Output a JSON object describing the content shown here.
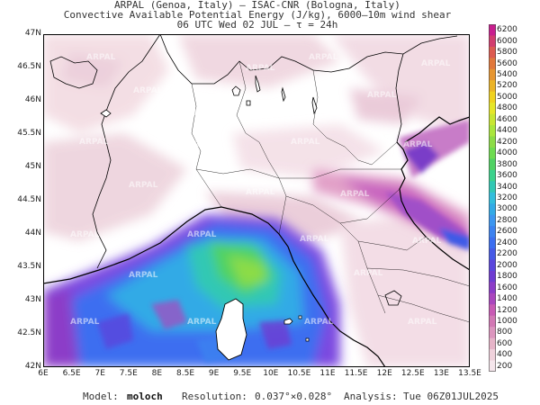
{
  "header": {
    "line1": "ARPAL (Genoa, Italy)  –  ISAC-CNR (Bologna, Italy)",
    "line2": "Convective Available Potential Energy (J/kg), 6000–10m wind shear",
    "line3": "06 UTC Wed 02 JUL  –  τ = 24h"
  },
  "axes": {
    "lat_labels": [
      "47N",
      "46.5N",
      "46N",
      "45.5N",
      "45N",
      "44.5N",
      "44N",
      "43.5N",
      "43N",
      "42.5N",
      "42N"
    ],
    "lon_labels": [
      "6E",
      "6.5E",
      "7E",
      "7.5E",
      "8E",
      "8.5E",
      "9E",
      "9.5E",
      "10E",
      "10.5E",
      "11E",
      "11.5E",
      "12E",
      "12.5E",
      "13E",
      "13.5E"
    ],
    "lat_range": [
      42,
      47
    ],
    "lon_range": [
      6,
      13.5
    ]
  },
  "colorbar": {
    "levels": [
      "6200",
      "6000",
      "5800",
      "5600",
      "5400",
      "5200",
      "5000",
      "4800",
      "4600",
      "4400",
      "4200",
      "4000",
      "3800",
      "3600",
      "3400",
      "3200",
      "3000",
      "2800",
      "2600",
      "2400",
      "2200",
      "2000",
      "1800",
      "1600",
      "1400",
      "1200",
      "1000",
      "800",
      "600",
      "400",
      "200"
    ],
    "colors": [
      "#c81e8e",
      "#d23c6e",
      "#dc5a50",
      "#e1783c",
      "#e69632",
      "#ebb428",
      "#f0d21e",
      "#e6e628",
      "#c8e632",
      "#aae63c",
      "#8cdc46",
      "#6edc50",
      "#50d264",
      "#3cd28c",
      "#32c8b4",
      "#32bedc",
      "#32aae6",
      "#3c96f0",
      "#3c82f0",
      "#3c6ef0",
      "#465ae6",
      "#5a46dc",
      "#6e3cd2",
      "#8c3cc8",
      "#aa46be",
      "#c85ab4",
      "#d278b4",
      "#dc96be",
      "#e6b4c8",
      "#f0d2dc",
      "#f5e6ec"
    ]
  },
  "watermark": "ARPAL",
  "footer": {
    "model_label": "Model:",
    "model_value": "moloch",
    "resolution_label": "Resolution:",
    "resolution_value": "0.037°×0.028°",
    "analysis_label": "Analysis:",
    "analysis_value": "Tue 06Z01JUL2025"
  }
}
